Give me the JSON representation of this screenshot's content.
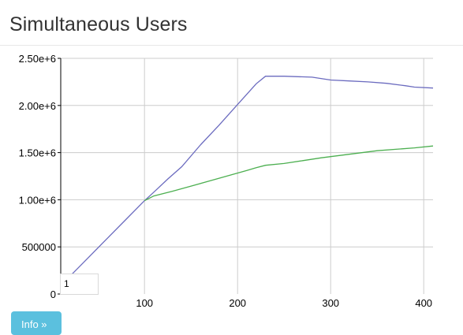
{
  "header": {
    "title": "Simultaneous Users"
  },
  "hover_box": {
    "value": "1"
  },
  "info_button": {
    "label": "Info »"
  },
  "colors": {
    "series_blue": "#6b6bbf",
    "series_green": "#4caf50",
    "grid": "#cccccc",
    "button": "#5bc0de"
  },
  "chart_data": {
    "type": "line",
    "title": "",
    "xlabel": "",
    "ylabel": "",
    "xlim": [
      10,
      410
    ],
    "ylim": [
      0,
      2500000
    ],
    "grid": true,
    "x_ticks": [
      100,
      200,
      300,
      400
    ],
    "x_tick_labels": [
      "100",
      "200",
      "300",
      "400"
    ],
    "y_ticks": [
      0,
      500000,
      1000000,
      1500000,
      2000000,
      2500000
    ],
    "y_tick_labels": [
      "0",
      "500000",
      "1.00e+6",
      "1.50e+6",
      "2.00e+6",
      "2.50e+6"
    ],
    "series": [
      {
        "color": "#6b6bbf",
        "x": [
          20,
          40,
          60,
          80,
          100,
          110,
          125,
          140,
          160,
          180,
          200,
          220,
          230,
          250,
          265,
          280,
          300,
          320,
          340,
          360,
          380,
          390,
          410
        ],
        "y": [
          190000,
          390000,
          590000,
          790000,
          990000,
          1080000,
          1220000,
          1350000,
          1580000,
          1790000,
          2010000,
          2230000,
          2310000,
          2310000,
          2305000,
          2300000,
          2270000,
          2260000,
          2250000,
          2235000,
          2210000,
          2195000,
          2185000
        ]
      },
      {
        "color": "#4caf50",
        "x": [
          100,
          110,
          130,
          150,
          170,
          190,
          210,
          220,
          230,
          250,
          270,
          290,
          310,
          330,
          350,
          370,
          390,
          410
        ],
        "y": [
          990000,
          1040000,
          1090000,
          1145000,
          1200000,
          1255000,
          1310000,
          1340000,
          1365000,
          1385000,
          1415000,
          1445000,
          1470000,
          1495000,
          1520000,
          1535000,
          1550000,
          1570000
        ]
      }
    ]
  }
}
